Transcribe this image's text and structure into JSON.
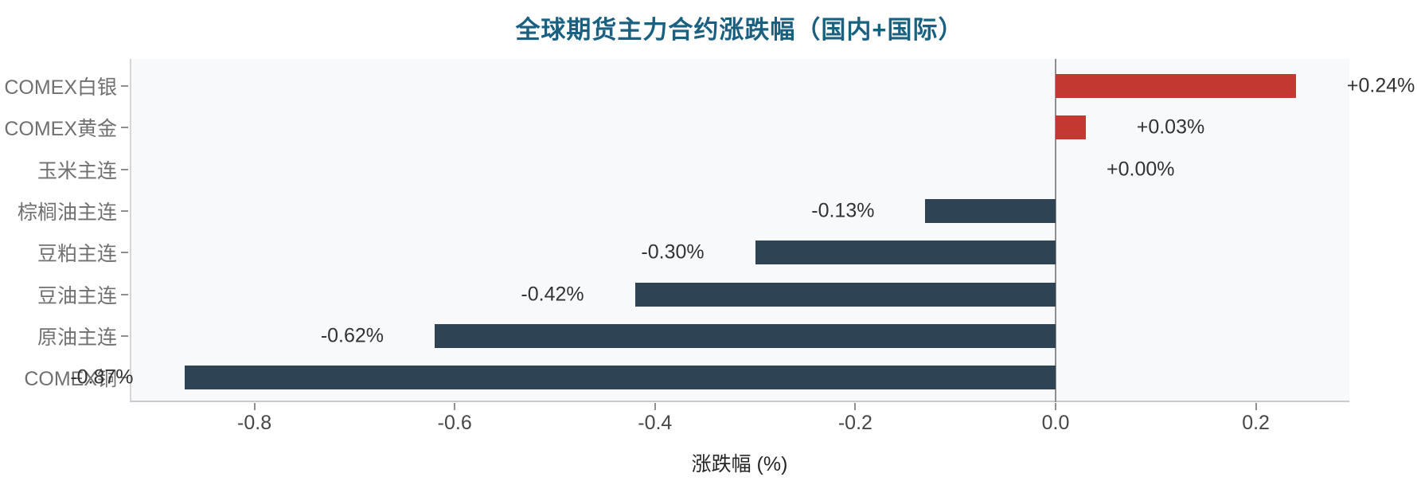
{
  "title": "全球期货主力合约涨跌幅（国内+国际）",
  "chart_data": {
    "type": "bar",
    "orientation": "horizontal",
    "title": "全球期货主力合约涨跌幅（国内+国际）",
    "categories": [
      "COMEX白银",
      "COMEX黄金",
      "玉米主连",
      "棕榈油主连",
      "豆粕主连",
      "豆油主连",
      "原油主连",
      "COMEX铜"
    ],
    "values": [
      0.24,
      0.03,
      0.0,
      -0.13,
      -0.3,
      -0.42,
      -0.62,
      -0.87
    ],
    "data_labels": [
      "+0.24%",
      "+0.03%",
      "+0.00%",
      "-0.13%",
      "-0.30%",
      "-0.42%",
      "-0.62%",
      "-0.87%"
    ],
    "xlabel": "涨跌幅 (%)",
    "ylabel": "",
    "xlim": [
      -0.925,
      0.293
    ],
    "x_ticks": [
      -0.8,
      -0.6,
      -0.4,
      -0.2,
      0.0,
      0.2
    ],
    "x_tick_labels": [
      "-0.8",
      "-0.6",
      "-0.4",
      "-0.2",
      "0.0",
      "0.2"
    ],
    "grid": false,
    "legend": "none",
    "colors": {
      "positive_bar": "#c33931",
      "negative_bar": "#2e4454",
      "title": "#1a6080",
      "plot_background": "#f8f9fb",
      "zero_line": "#8f8f8f",
      "tick_mark": "#8f8f8f",
      "y_tick_label": "#707070",
      "x_tick_label": "#474747",
      "value_label": "#333333",
      "axis_title": "#262626"
    }
  }
}
